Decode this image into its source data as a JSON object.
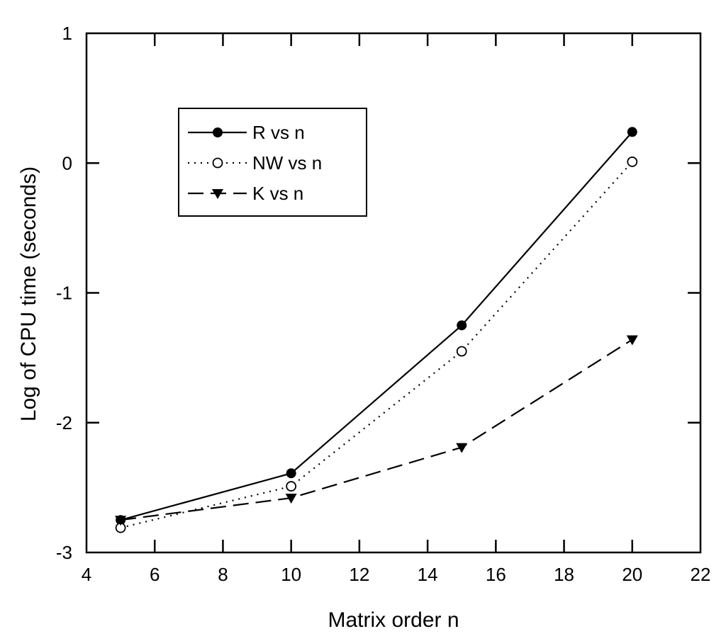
{
  "chart_data": {
    "type": "line",
    "title": "",
    "xlabel": "Matrix order n",
    "ylabel": "Log of CPU time (seconds)",
    "xlim": [
      4,
      22
    ],
    "ylim": [
      -3,
      1
    ],
    "xticks": [
      4,
      6,
      8,
      10,
      12,
      14,
      16,
      18,
      20,
      22
    ],
    "yticks": [
      -3,
      -2,
      -1,
      0,
      1
    ],
    "grid": false,
    "legend_position": "top-left",
    "series": [
      {
        "name": "R vs n",
        "style": "solid",
        "marker": "filled-circle",
        "x": [
          5,
          10,
          15,
          20
        ],
        "y": [
          -2.75,
          -2.39,
          -1.25,
          0.24
        ]
      },
      {
        "name": "NW vs n",
        "style": "dotted",
        "marker": "open-circle",
        "x": [
          5,
          10,
          15,
          20
        ],
        "y": [
          -2.81,
          -2.49,
          -1.45,
          0.01
        ]
      },
      {
        "name": "K vs n",
        "style": "dashed",
        "marker": "filled-triangle-down",
        "x": [
          5,
          10,
          15,
          20
        ],
        "y": [
          -2.75,
          -2.58,
          -2.19,
          -1.36
        ]
      }
    ]
  }
}
